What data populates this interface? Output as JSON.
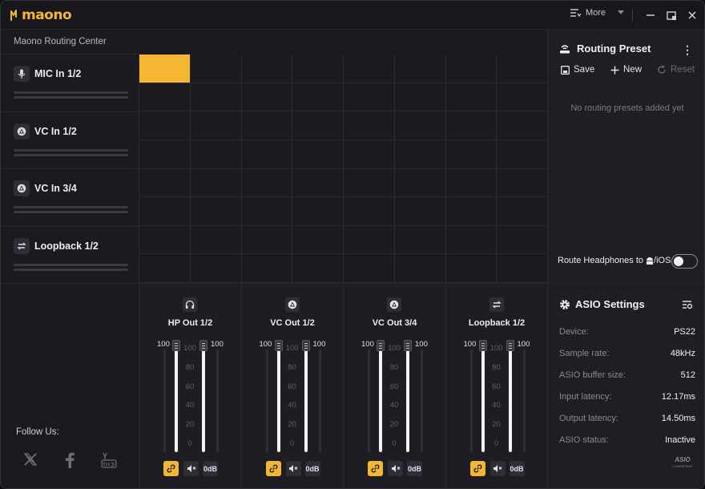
{
  "app": {
    "brand": "maono",
    "subtitle": "Maono Routing Center",
    "accent": "#f5b731"
  },
  "titlebar": {
    "more_label": "More",
    "icons": [
      "more-menu-icon",
      "chevron-down-icon",
      "minimize-icon",
      "restore-icon",
      "close-icon"
    ]
  },
  "inputs": [
    {
      "label": "MIC In 1/2",
      "icon": "microphone-icon"
    },
    {
      "label": "VC In 1/2",
      "icon": "vc-icon"
    },
    {
      "label": "VC In 3/4",
      "icon": "vc-icon"
    },
    {
      "label": "Loopback 1/2",
      "icon": "loopback-icon"
    }
  ],
  "matrix": {
    "columns": 8,
    "rows": 8,
    "active_cells": [
      [
        0,
        0
      ]
    ]
  },
  "preset": {
    "title": "Routing Preset",
    "save": "Save",
    "new": "New",
    "reset": "Reset",
    "empty": "No routing presets added yet",
    "route_label_a": "Route Headphones to ",
    "route_label_b": "/iOS",
    "route_toggle_on": false
  },
  "follow": {
    "label": "Follow Us:",
    "icons": [
      "x-icon",
      "facebook-icon",
      "youtube-icon"
    ]
  },
  "outputs": [
    {
      "name": "HP Out 1/2",
      "icon": "headphones-icon",
      "left_value": "100",
      "right_value": "100",
      "left_level": 1.0,
      "right_level": 1.0,
      "link": "link",
      "mute": "mute",
      "zero": "0dB"
    },
    {
      "name": "VC Out 1/2",
      "icon": "vc-icon",
      "left_value": "100",
      "right_value": "100",
      "left_level": 1.0,
      "right_level": 1.0,
      "link": "link",
      "mute": "mute",
      "zero": "0dB"
    },
    {
      "name": "VC Out 3/4",
      "icon": "vc-icon",
      "left_value": "100",
      "right_value": "100",
      "left_level": 1.0,
      "right_level": 1.0,
      "link": "link",
      "mute": "mute",
      "zero": "0dB"
    },
    {
      "name": "Loopback 1/2",
      "icon": "loopback-icon",
      "left_value": "100",
      "right_value": "100",
      "left_level": 1.0,
      "right_level": 1.0,
      "link": "link",
      "mute": "mute",
      "zero": "0dB"
    }
  ],
  "scale_ticks": [
    "100",
    "80",
    "60",
    "40",
    "20",
    "0"
  ],
  "asio": {
    "title": "ASIO Settings",
    "rows": [
      {
        "key": "Device:",
        "value": "PS22"
      },
      {
        "key": "Sample rate:",
        "value": "48kHz"
      },
      {
        "key": "ASIO buffer size:",
        "value": "512"
      },
      {
        "key": "Input latency:",
        "value": "12.17ms"
      },
      {
        "key": "Output latency:",
        "value": "14.50ms"
      },
      {
        "key": "ASIO status:",
        "value": "Inactive"
      }
    ],
    "logo_text": "ASIO",
    "logo_sub": "COMPATIBLE"
  }
}
